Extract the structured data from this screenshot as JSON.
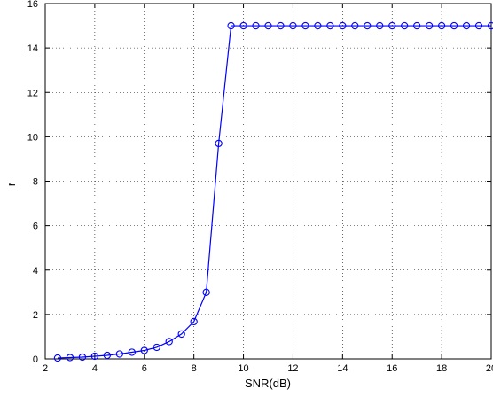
{
  "chart_data": {
    "type": "line",
    "title": "",
    "xlabel": "SNR(dB)",
    "ylabel": "r",
    "xlim": [
      2,
      20
    ],
    "ylim": [
      0,
      16
    ],
    "x_ticks": [
      2,
      4,
      6,
      8,
      10,
      12,
      14,
      16,
      18,
      20
    ],
    "y_ticks": [
      0,
      2,
      4,
      6,
      8,
      10,
      12,
      14,
      16
    ],
    "grid": true,
    "grid_style": "dotted",
    "legend": "none",
    "series": [
      {
        "color": "#0000ff",
        "marker": "circle",
        "x": [
          2.5,
          3,
          3.5,
          4,
          4.5,
          5,
          5.5,
          6,
          6.5,
          7,
          7.5,
          8,
          8.5,
          9,
          9.5,
          10,
          10.5,
          11,
          11.5,
          12,
          12.5,
          13,
          13.5,
          14,
          14.5,
          15,
          15.5,
          16,
          16.5,
          17,
          17.5,
          18,
          18.5,
          19,
          19.5,
          20
        ],
        "y": [
          0.04,
          0.06,
          0.08,
          0.12,
          0.16,
          0.22,
          0.3,
          0.38,
          0.52,
          0.78,
          1.12,
          1.68,
          3.0,
          9.7,
          15,
          15,
          15,
          15,
          15,
          15,
          15,
          15,
          15,
          15,
          15,
          15,
          15,
          15,
          15,
          15,
          15,
          15,
          15,
          15,
          15,
          15
        ]
      }
    ]
  }
}
